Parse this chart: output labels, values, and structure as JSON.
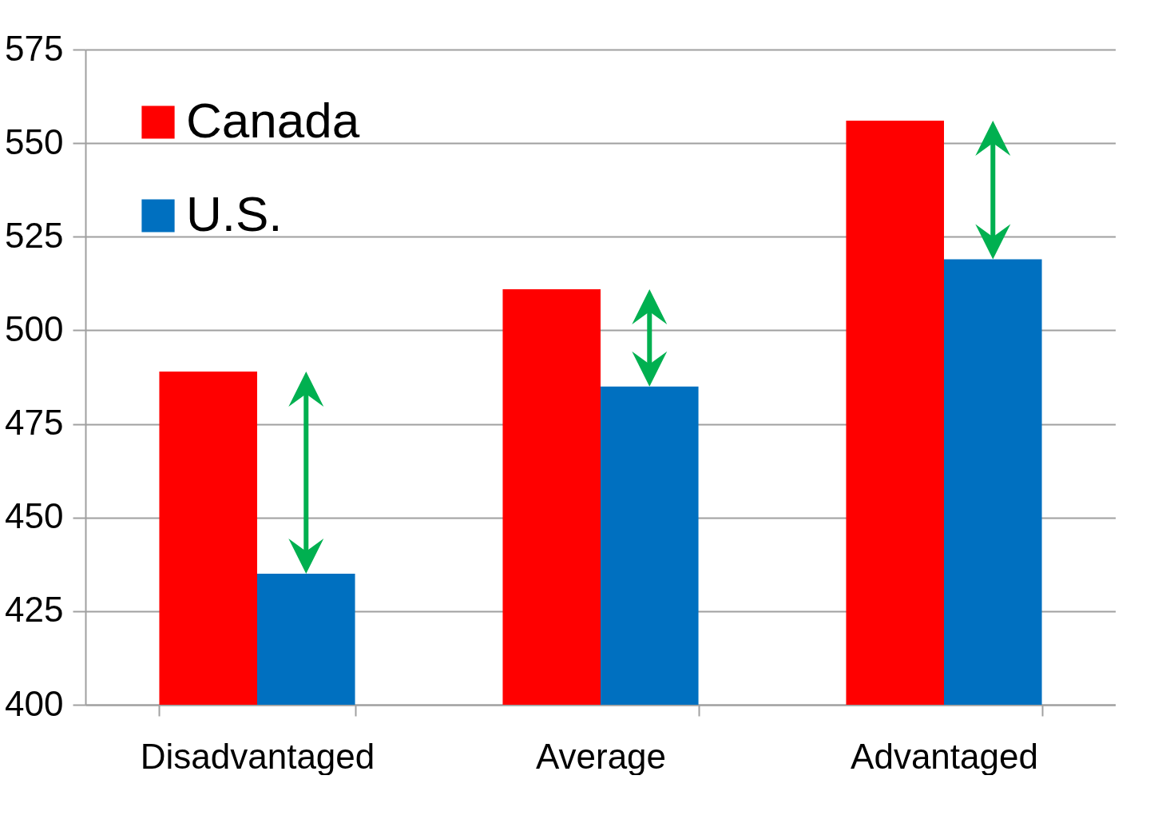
{
  "chart_data": {
    "type": "bar",
    "categories": [
      "Disadvantaged",
      "Average",
      "Advantaged"
    ],
    "series": [
      {
        "name": "Canada",
        "color": "#ff0000",
        "values": [
          489,
          511,
          556
        ]
      },
      {
        "name": "U.S.",
        "color": "#0070c0",
        "values": [
          435,
          485,
          519
        ]
      }
    ],
    "ylim": [
      400,
      575
    ],
    "yticks": [
      400,
      425,
      450,
      475,
      500,
      525,
      550,
      575
    ],
    "grid": "y",
    "legend": "top left"
  }
}
